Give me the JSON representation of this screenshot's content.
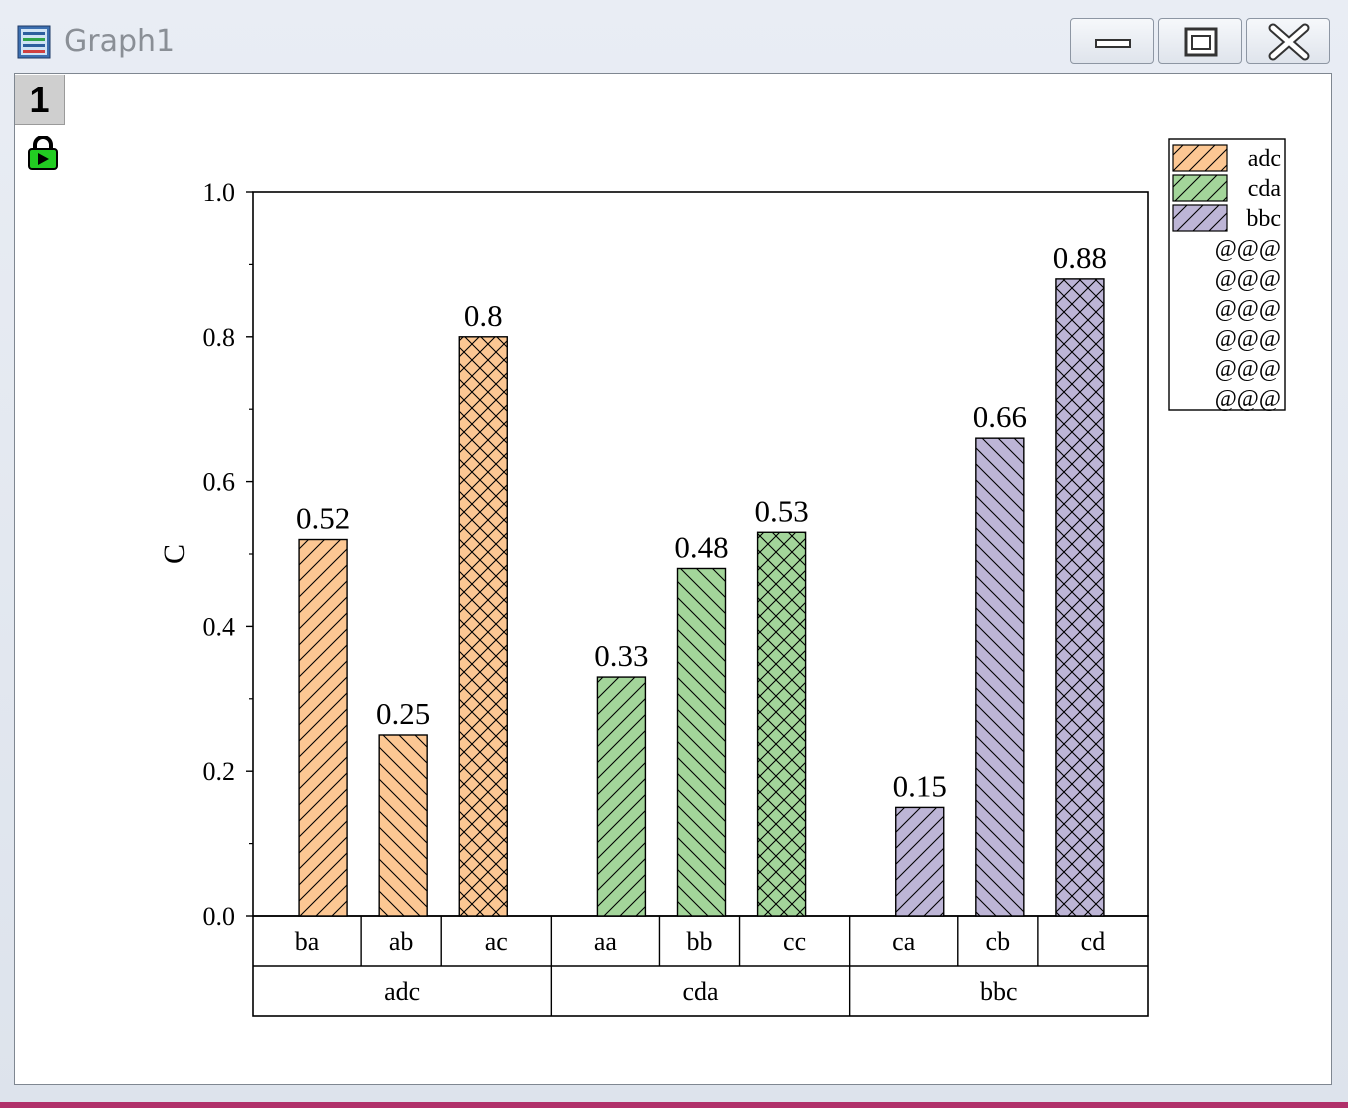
{
  "window": {
    "title": "Graph1",
    "layer_label": "1"
  },
  "icons": {
    "app": "graph-window-icon",
    "lock": "lock-icon",
    "minimize": "minimize-icon",
    "maximize": "maximize-icon",
    "close": "close-icon"
  },
  "chart_data": {
    "type": "bar",
    "title": "",
    "xlabel": "",
    "ylabel": "C",
    "ylim": [
      0.0,
      1.0
    ],
    "yticks": [
      "0.0",
      "0.2",
      "0.4",
      "0.6",
      "0.8",
      "1.0"
    ],
    "grid": false,
    "legend_position": "top-right",
    "legend": [
      "adc",
      "cda",
      "bbc",
      "@@@",
      "@@@",
      "@@@",
      "@@@",
      "@@@",
      "@@@"
    ],
    "groups": [
      {
        "name": "adc",
        "color": "#fcc793",
        "bars": [
          {
            "label": "ba",
            "value": 0.52,
            "pattern": "fwd"
          },
          {
            "label": "ab",
            "value": 0.25,
            "pattern": "back"
          },
          {
            "label": "ac",
            "value": 0.8,
            "pattern": "cross"
          }
        ]
      },
      {
        "name": "cda",
        "color": "#a3d59a",
        "bars": [
          {
            "label": "aa",
            "value": 0.33,
            "pattern": "fwd"
          },
          {
            "label": "bb",
            "value": 0.48,
            "pattern": "back"
          },
          {
            "label": "cc",
            "value": 0.53,
            "pattern": "cross"
          }
        ]
      },
      {
        "name": "bbc",
        "color": "#bdb5d6",
        "bars": [
          {
            "label": "ca",
            "value": 0.15,
            "pattern": "fwd"
          },
          {
            "label": "cb",
            "value": 0.66,
            "pattern": "back"
          },
          {
            "label": "cd",
            "value": 0.88,
            "pattern": "cross"
          }
        ]
      }
    ]
  }
}
